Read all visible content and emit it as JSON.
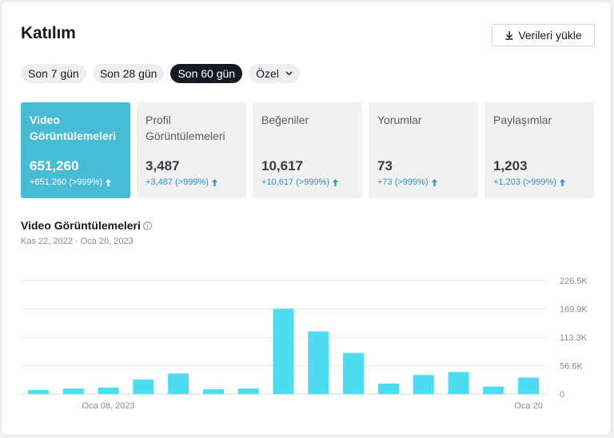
{
  "page": {
    "title": "Katılım",
    "download_label": "Verileri yükle"
  },
  "filters": {
    "options": [
      "Son 7 gün",
      "Son 28 gün",
      "Son 60 gün"
    ],
    "custom_label": "Özel",
    "selected": "Son 60 gün"
  },
  "metrics": [
    {
      "label": "Video Görüntülemeleri",
      "value": "651,260",
      "change": "+651,260 (>999%)"
    },
    {
      "label": "Profil Görüntülemeleri",
      "value": "3,487",
      "change": "+3,487 (>999%)"
    },
    {
      "label": "Beğeniler",
      "value": "10,617",
      "change": "+10,617 (>999%)"
    },
    {
      "label": "Yorumlar",
      "value": "73",
      "change": "+73 (>999%)"
    },
    {
      "label": "Paylaşımlar",
      "value": "1,203",
      "change": "+1,203 (>999%)"
    }
  ],
  "chart": {
    "title": "Video Görüntülemeleri",
    "date_range": "Kas 22, 2022 · Oca 20, 2023"
  },
  "chart_data": {
    "type": "bar",
    "values": [
      8000,
      11000,
      13000,
      29000,
      41000,
      9500,
      11000,
      170000,
      125000,
      82000,
      21000,
      38000,
      44000,
      15000,
      33000
    ],
    "ylim": [
      0,
      226500
    ],
    "yticks": [
      0,
      56600,
      113300,
      169900,
      226500
    ],
    "ytick_labels": [
      "0",
      "56.6K",
      "113.3K",
      "169.9K",
      "226.5K"
    ],
    "xtick_labels": [
      {
        "index": 2,
        "label": "Oca 08, 2023"
      },
      {
        "index": 14,
        "label": "Oca 20"
      }
    ],
    "bar_color": "#4ddcf0",
    "grid": true
  },
  "colors": {
    "accent": "#48bcd4",
    "up_arrow": "#2b93c7"
  }
}
